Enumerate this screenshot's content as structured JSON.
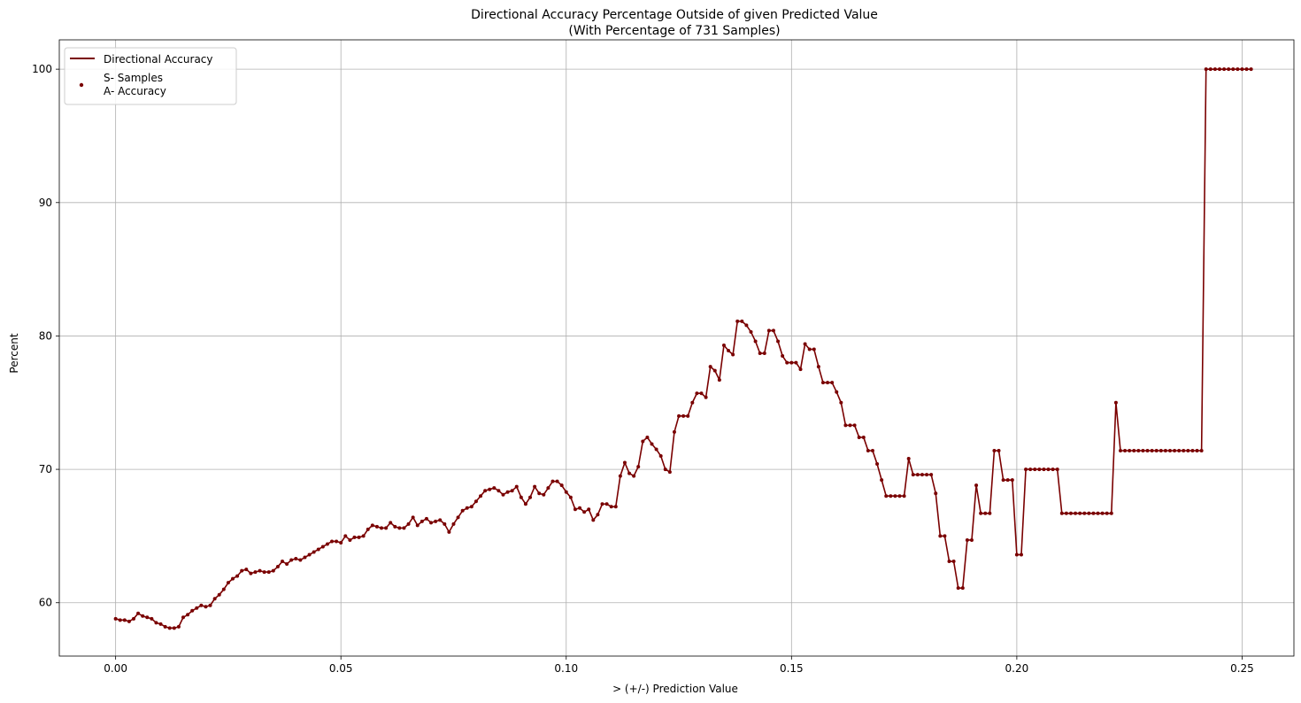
{
  "chart_data": {
    "type": "line",
    "title": "Directional Accuracy Percentage Outside of given Predicted Value",
    "subtitle": "(With Percentage of 731 Samples)",
    "xlabel": "> (+/-) Prediction Value",
    "ylabel": "Percent",
    "xlim": [
      -0.0125,
      0.2615
    ],
    "ylim": [
      56,
      102.2
    ],
    "xticks": [
      0.0,
      0.05,
      0.1,
      0.15,
      0.2,
      0.25
    ],
    "xtick_labels": [
      "0.00",
      "0.05",
      "0.10",
      "0.15",
      "0.20",
      "0.25"
    ],
    "yticks": [
      60,
      70,
      80,
      90,
      100
    ],
    "ytick_labels": [
      "60",
      "70",
      "80",
      "90",
      "100"
    ],
    "grid": true,
    "legend_position": "top-left",
    "legend": [
      {
        "label": "Directional Accuracy",
        "marker": "line"
      },
      {
        "label_lines": [
          "S- Samples",
          "A- Accuracy"
        ],
        "marker": "point"
      }
    ],
    "line_color": "#7a0000",
    "series": [
      {
        "name": "Directional Accuracy",
        "x_start": 0.0,
        "x_step": 0.001,
        "y": [
          58.8,
          58.7,
          58.7,
          58.6,
          58.8,
          59.2,
          59.0,
          58.9,
          58.8,
          58.5,
          58.4,
          58.2,
          58.1,
          58.1,
          58.2,
          58.9,
          59.1,
          59.4,
          59.6,
          59.8,
          59.7,
          59.8,
          60.3,
          60.6,
          61.0,
          61.5,
          61.8,
          62.0,
          62.4,
          62.5,
          62.2,
          62.3,
          62.4,
          62.3,
          62.3,
          62.4,
          62.7,
          63.1,
          62.9,
          63.2,
          63.3,
          63.2,
          63.4,
          63.6,
          63.8,
          64.0,
          64.2,
          64.4,
          64.6,
          64.6,
          64.5,
          65.0,
          64.7,
          64.9,
          64.9,
          65.0,
          65.5,
          65.8,
          65.7,
          65.6,
          65.6,
          66.0,
          65.7,
          65.6,
          65.6,
          65.9,
          66.4,
          65.8,
          66.1,
          66.3,
          66.0,
          66.1,
          66.2,
          65.9,
          65.3,
          65.9,
          66.4,
          66.9,
          67.1,
          67.2,
          67.6,
          68.0,
          68.4,
          68.5,
          68.6,
          68.4,
          68.1,
          68.3,
          68.4,
          68.7,
          67.9,
          67.4,
          67.9,
          68.7,
          68.2,
          68.1,
          68.6,
          69.1,
          69.1,
          68.8,
          68.3,
          67.9,
          67.0,
          67.1,
          66.8,
          67.0,
          66.2,
          66.6,
          67.4,
          67.4,
          67.2,
          67.2,
          69.5,
          70.5,
          69.7,
          69.5,
          70.2,
          72.1,
          72.4,
          71.9,
          71.5,
          71.0,
          70.0,
          69.8,
          72.8,
          74.0,
          74.0,
          74.0,
          75.0,
          75.7,
          75.7,
          75.4,
          77.7,
          77.4,
          76.7,
          79.3,
          78.9,
          78.6,
          81.1,
          81.1,
          80.8,
          80.3,
          79.6,
          78.7,
          78.7,
          80.4,
          80.4,
          79.6,
          78.5,
          78.0,
          78.0,
          78.0,
          77.5,
          79.4,
          79.0,
          79.0,
          77.7,
          76.5,
          76.5,
          76.5,
          75.8,
          75.0,
          73.3,
          73.3,
          73.3,
          72.4,
          72.4,
          71.4,
          71.4,
          70.4,
          69.2,
          68.0,
          68.0,
          68.0,
          68.0,
          68.0,
          70.8,
          69.6,
          69.6,
          69.6,
          69.6,
          69.6,
          68.2,
          65.0,
          65.0,
          63.1,
          63.1,
          61.1,
          61.1,
          64.7,
          64.7,
          68.8,
          66.7,
          66.7,
          66.7,
          71.4,
          71.4,
          69.2,
          69.2,
          69.2,
          63.6,
          63.6,
          70.0,
          70.0,
          70.0,
          70.0,
          70.0,
          70.0,
          70.0,
          70.0,
          66.7,
          66.7,
          66.7,
          66.7,
          66.7,
          66.7,
          66.7,
          66.7,
          66.7,
          66.7,
          66.7,
          66.7,
          75.0,
          71.4,
          71.4,
          71.4,
          71.4,
          71.4,
          71.4,
          71.4,
          71.4,
          71.4,
          71.4,
          71.4,
          71.4,
          71.4,
          71.4,
          71.4,
          71.4,
          71.4,
          71.4,
          71.4,
          100.0,
          100.0,
          100.0,
          100.0,
          100.0,
          100.0,
          100.0,
          100.0,
          100.0,
          100.0,
          100.0
        ]
      }
    ]
  }
}
